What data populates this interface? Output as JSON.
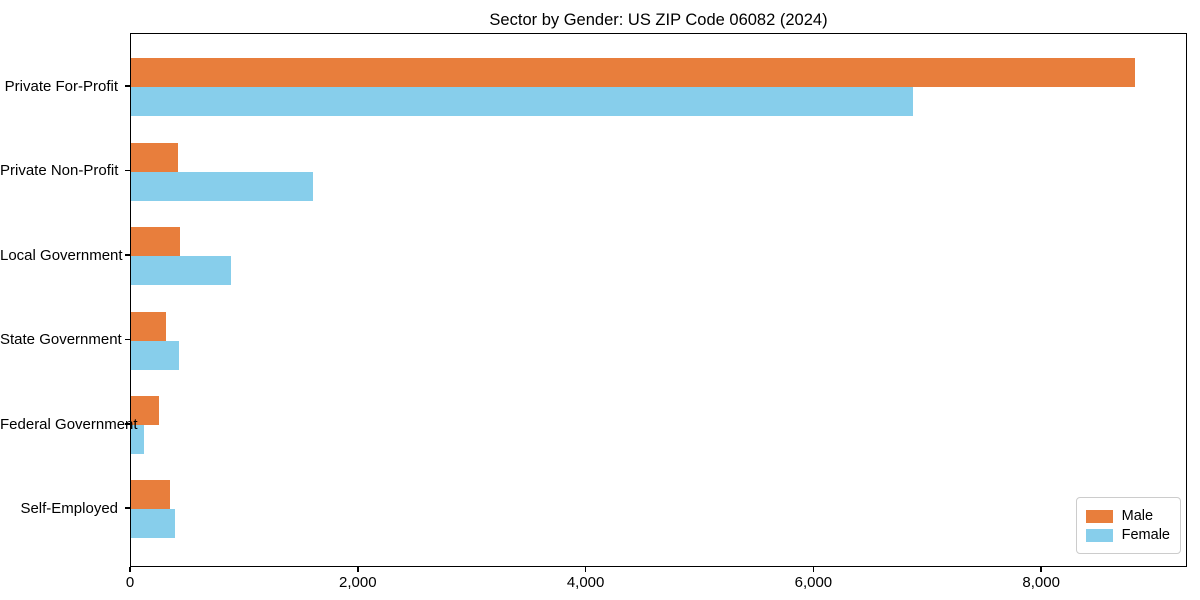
{
  "chart": {
    "title": "Sector by Gender: US ZIP Code 06082 (2024)"
  },
  "chart_data": {
    "type": "bar",
    "orientation": "horizontal",
    "title": "Sector by Gender: US ZIP Code 06082 (2024)",
    "categories": [
      "Private For-Profit",
      "Private Non-Profit",
      "Local Government",
      "State Government",
      "Federal Government",
      "Self-Employed"
    ],
    "series": [
      {
        "name": "Male",
        "color": "#e87e3c",
        "values": [
          8830,
          410,
          430,
          310,
          250,
          345
        ]
      },
      {
        "name": "Female",
        "color": "#87ceeb",
        "values": [
          6880,
          1600,
          880,
          425,
          110,
          390
        ]
      }
    ],
    "xlabel": "",
    "ylabel": "",
    "xlim": [
      0,
      9280
    ],
    "xticks": [
      0,
      2000,
      4000,
      6000,
      8000
    ],
    "xtick_labels": [
      "0",
      "2,000",
      "4,000",
      "6,000",
      "8,000"
    ],
    "legend_position": "lower right",
    "grid": false
  }
}
